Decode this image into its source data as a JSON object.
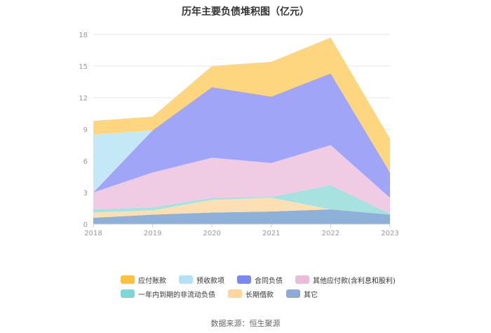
{
  "chart_data": {
    "type": "area",
    "stacked": true,
    "title": "历年主要负债堆积图（亿元）",
    "categories": [
      "2018",
      "2019",
      "2020",
      "2021",
      "2022",
      "2023"
    ],
    "ylim": [
      0,
      18
    ],
    "yticks": [
      "0",
      "3",
      "6",
      "9",
      "12",
      "15",
      "18"
    ],
    "grid": true,
    "legend_position": "bottom",
    "series": [
      {
        "name": "其它",
        "color": "#8fb0d9",
        "values": [
          0.6,
          0.9,
          1.1,
          1.2,
          1.4,
          0.9
        ]
      },
      {
        "name": "长期借款",
        "color": "#fce0b3",
        "values": [
          0.5,
          0.4,
          1.2,
          1.3,
          0.0,
          0.0
        ]
      },
      {
        "name": "一年内到期的非流动负债",
        "color": "#a8e2e0",
        "values": [
          0.3,
          0.3,
          0.2,
          0.1,
          2.3,
          0.1
        ]
      },
      {
        "name": "其他应付款(含利息和股利)",
        "color": "#f0cce4",
        "values": [
          1.6,
          3.3,
          3.8,
          3.2,
          3.8,
          1.5
        ]
      },
      {
        "name": "合同负债",
        "color": "#a0a5f7",
        "values": [
          0.0,
          4.0,
          6.7,
          6.3,
          6.8,
          2.4
        ]
      },
      {
        "name": "预收款项",
        "color": "#c5e8f7",
        "values": [
          5.5,
          0.0,
          0.0,
          0.0,
          0.0,
          0.0
        ]
      },
      {
        "name": "应付账款",
        "color": "#fdd67f",
        "values": [
          1.3,
          1.3,
          2.0,
          3.3,
          3.4,
          3.2
        ]
      }
    ]
  },
  "legend": {
    "items": [
      {
        "label": "应付账款",
        "color": "#fcc23e"
      },
      {
        "label": "预收款项",
        "color": "#b3e2f7"
      },
      {
        "label": "合同负债",
        "color": "#7e86ef"
      },
      {
        "label": "其他应付款(含利息和股利)",
        "color": "#ebbbdc"
      },
      {
        "label": "一年内到期的非流动负债",
        "color": "#7fd6d6"
      },
      {
        "label": "长期借款",
        "color": "#fcd69a"
      },
      {
        "label": "其它",
        "color": "#8eaad6"
      }
    ]
  },
  "source": "数据来源：恒生聚源"
}
